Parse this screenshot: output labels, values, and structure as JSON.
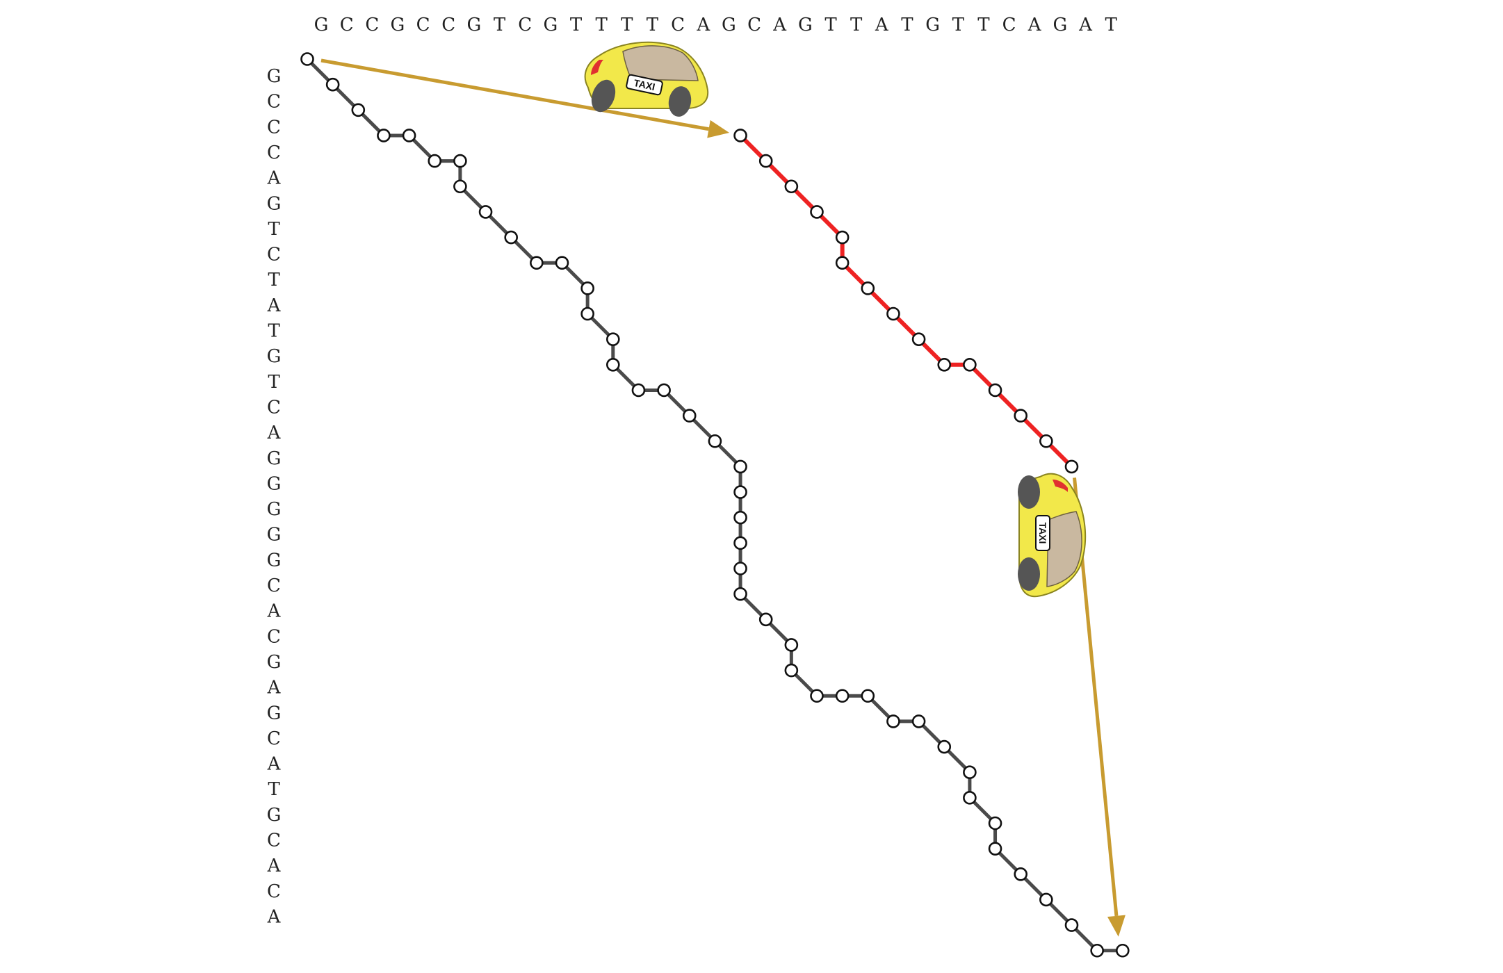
{
  "top_sequence": [
    "G",
    "C",
    "C",
    "G",
    "C",
    "C",
    "G",
    "T",
    "C",
    "G",
    "T",
    "T",
    "T",
    "T",
    "C",
    "A",
    "G",
    "C",
    "A",
    "G",
    "T",
    "T",
    "A",
    "T",
    "G",
    "T",
    "T",
    "C",
    "A",
    "G",
    "A",
    "T"
  ],
  "left_sequence": [
    "G",
    "C",
    "C",
    "C",
    "A",
    "G",
    "T",
    "C",
    "T",
    "A",
    "T",
    "G",
    "T",
    "C",
    "A",
    "G",
    "G",
    "G",
    "G",
    "G",
    "C",
    "A",
    "C",
    "G",
    "A",
    "G",
    "C",
    "A",
    "T",
    "G",
    "C",
    "A",
    "C",
    "A"
  ],
  "long_path": [
    [
      0,
      0
    ],
    [
      1,
      1
    ],
    [
      2,
      2
    ],
    [
      3,
      3
    ],
    [
      4,
      3
    ],
    [
      5,
      4
    ],
    [
      6,
      4
    ],
    [
      6,
      5
    ],
    [
      7,
      6
    ],
    [
      8,
      7
    ],
    [
      9,
      8
    ],
    [
      10,
      8
    ],
    [
      11,
      9
    ],
    [
      11,
      10
    ],
    [
      12,
      11
    ],
    [
      12,
      12
    ],
    [
      13,
      13
    ],
    [
      14,
      13
    ],
    [
      15,
      14
    ],
    [
      16,
      15
    ],
    [
      17,
      16
    ],
    [
      17,
      17
    ],
    [
      17,
      18
    ],
    [
      17,
      19
    ],
    [
      17,
      20
    ],
    [
      17,
      21
    ],
    [
      18,
      22
    ],
    [
      19,
      23
    ],
    [
      19,
      24
    ],
    [
      20,
      25
    ],
    [
      21,
      25
    ],
    [
      22,
      25
    ],
    [
      23,
      26
    ],
    [
      24,
      26
    ],
    [
      25,
      27
    ],
    [
      26,
      28
    ],
    [
      26,
      29
    ],
    [
      27,
      30
    ],
    [
      27,
      31
    ],
    [
      28,
      32
    ],
    [
      29,
      33
    ],
    [
      30,
      34
    ],
    [
      31,
      35
    ],
    [
      32,
      35
    ]
  ],
  "jump_path": [
    [
      17,
      3
    ],
    [
      18,
      4
    ],
    [
      19,
      5
    ],
    [
      20,
      6
    ],
    [
      21,
      7
    ],
    [
      21,
      8
    ],
    [
      22,
      9
    ],
    [
      23,
      10
    ],
    [
      24,
      11
    ],
    [
      25,
      12
    ],
    [
      26,
      12
    ],
    [
      27,
      13
    ],
    [
      28,
      14
    ],
    [
      29,
      15
    ],
    [
      30,
      16
    ]
  ],
  "shortcut_start": [
    0,
    0
  ],
  "shortcut_end": [
    32,
    35
  ],
  "taxi_text": "TAXI",
  "colors": {
    "path": "#4a4a4a",
    "highlight": "#ee2222",
    "arrow": "#c89b30",
    "taxi_body": "#f2e84a",
    "taxi_window": "#c9b8a0"
  }
}
